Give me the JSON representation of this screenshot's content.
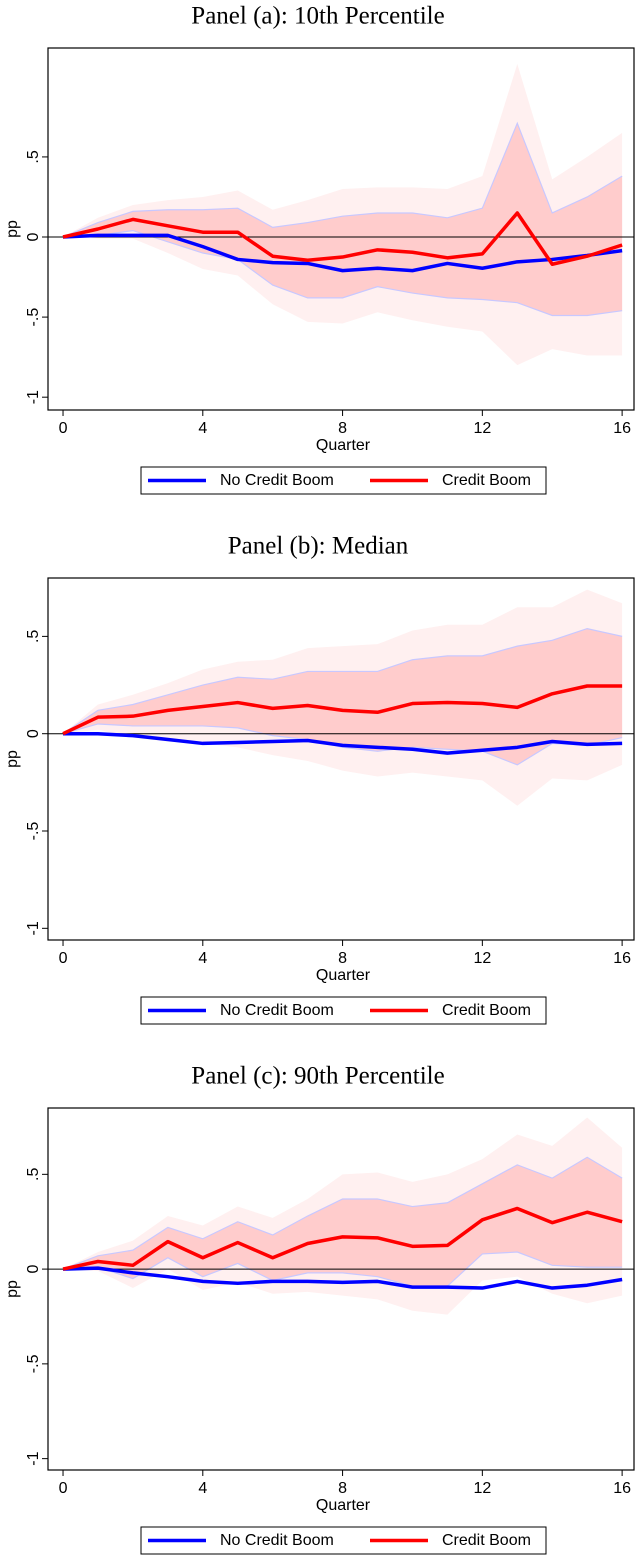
{
  "chart_data": [
    {
      "type": "line",
      "title": "Panel (a): 10th Percentile",
      "xlabel": "Quarter",
      "ylabel": "pp",
      "legend": "below",
      "reference_line": 0,
      "x": [
        0,
        1,
        2,
        3,
        4,
        5,
        6,
        7,
        8,
        9,
        10,
        11,
        12,
        13,
        14,
        15,
        16
      ],
      "xlim": [
        -0.43,
        16.34
      ],
      "xticks": [
        0,
        4,
        8,
        12,
        16
      ],
      "ylim": [
        -1.08,
        1.18
      ],
      "yticks": [
        {
          "value": -1,
          "label": "-1"
        },
        {
          "value": -0.5,
          "label": "-.5"
        },
        0,
        {
          "value": 0.5,
          "label": ".5"
        }
      ],
      "series": [
        {
          "name": "No Credit Boom",
          "color": "#0000ff",
          "values": [
            0,
            0.01,
            0.01,
            0.01,
            -0.06,
            -0.14,
            -0.16,
            -0.165,
            -0.21,
            -0.195,
            -0.21,
            -0.165,
            -0.195,
            -0.155,
            -0.14,
            -0.115,
            -0.085
          ]
        },
        {
          "name": "Credit Boom",
          "color": "#ff0000",
          "values": [
            0,
            0.05,
            0.11,
            0.07,
            0.03,
            0.03,
            -0.12,
            -0.145,
            -0.125,
            -0.08,
            -0.095,
            -0.13,
            -0.105,
            0.15,
            -0.17,
            -0.12,
            -0.05
          ]
        }
      ],
      "bands": [
        {
          "color": "#fff0f0",
          "lower": [
            0,
            -0.01,
            -0.01,
            -0.1,
            -0.2,
            -0.24,
            -0.42,
            -0.53,
            -0.54,
            -0.47,
            -0.52,
            -0.56,
            -0.59,
            -0.8,
            -0.7,
            -0.74,
            -0.74
          ],
          "upper": [
            0,
            0.12,
            0.2,
            0.23,
            0.25,
            0.29,
            0.17,
            0.23,
            0.3,
            0.31,
            0.31,
            0.3,
            0.38,
            1.08,
            0.36,
            0.5,
            0.65
          ]
        },
        {
          "color": "#ffcccc",
          "edge_color": "#c8c8ff",
          "lower": [
            0,
            0.01,
            0.04,
            -0.03,
            -0.1,
            -0.14,
            -0.3,
            -0.38,
            -0.38,
            -0.31,
            -0.35,
            -0.38,
            -0.39,
            -0.41,
            -0.49,
            -0.49,
            -0.46
          ],
          "upper": [
            0,
            0.09,
            0.16,
            0.17,
            0.17,
            0.18,
            0.06,
            0.09,
            0.13,
            0.15,
            0.15,
            0.12,
            0.18,
            0.71,
            0.15,
            0.25,
            0.38
          ]
        }
      ]
    },
    {
      "type": "line",
      "title": "Panel (b): Median",
      "xlabel": "Quarter",
      "ylabel": "pp",
      "legend": "below",
      "reference_line": 0,
      "x": [
        0,
        1,
        2,
        3,
        4,
        5,
        6,
        7,
        8,
        9,
        10,
        11,
        12,
        13,
        14,
        15,
        16
      ],
      "xlim": [
        -0.43,
        16.34
      ],
      "xticks": [
        0,
        4,
        8,
        12,
        16
      ],
      "ylim": [
        -1.06,
        0.8
      ],
      "yticks": [
        {
          "value": -1,
          "label": "-1"
        },
        {
          "value": -0.5,
          "label": "-.5"
        },
        0,
        {
          "value": 0.5,
          "label": ".5"
        }
      ],
      "series": [
        {
          "name": "No Credit Boom",
          "color": "#0000ff",
          "values": [
            0,
            0,
            -0.01,
            -0.03,
            -0.05,
            -0.045,
            -0.04,
            -0.035,
            -0.06,
            -0.07,
            -0.08,
            -0.1,
            -0.085,
            -0.07,
            -0.04,
            -0.055,
            -0.05
          ]
        },
        {
          "name": "Credit Boom",
          "color": "#ff0000",
          "values": [
            0,
            0.085,
            0.09,
            0.12,
            0.14,
            0.16,
            0.13,
            0.145,
            0.12,
            0.11,
            0.155,
            0.16,
            0.155,
            0.135,
            0.205,
            0.245,
            0.245
          ]
        }
      ],
      "bands": [
        {
          "color": "#fff0f0",
          "lower": [
            0,
            0.02,
            -0.02,
            -0.04,
            -0.05,
            -0.07,
            -0.11,
            -0.14,
            -0.19,
            -0.22,
            -0.2,
            -0.22,
            -0.24,
            -0.37,
            -0.23,
            -0.24,
            -0.16
          ],
          "upper": [
            0,
            0.15,
            0.2,
            0.26,
            0.33,
            0.37,
            0.38,
            0.44,
            0.45,
            0.46,
            0.53,
            0.56,
            0.56,
            0.65,
            0.65,
            0.74,
            0.67
          ]
        },
        {
          "color": "#ffcccc",
          "edge_color": "#c8c8ff",
          "lower": [
            0,
            0.05,
            0.04,
            0.04,
            0.04,
            0.03,
            -0.01,
            -0.03,
            -0.07,
            -0.09,
            -0.07,
            -0.08,
            -0.09,
            -0.16,
            -0.05,
            -0.06,
            -0.02
          ],
          "upper": [
            0,
            0.12,
            0.15,
            0.2,
            0.25,
            0.29,
            0.28,
            0.32,
            0.32,
            0.32,
            0.38,
            0.4,
            0.4,
            0.45,
            0.48,
            0.54,
            0.5
          ]
        }
      ]
    },
    {
      "type": "line",
      "title": "Panel (c): 90th Percentile",
      "xlabel": "Quarter",
      "ylabel": "pp",
      "legend": "below",
      "reference_line": 0,
      "x": [
        0,
        1,
        2,
        3,
        4,
        5,
        6,
        7,
        8,
        9,
        10,
        11,
        12,
        13,
        14,
        15,
        16
      ],
      "xlim": [
        -0.43,
        16.34
      ],
      "xticks": [
        0,
        4,
        8,
        12,
        16
      ],
      "ylim": [
        -1.06,
        0.85
      ],
      "yticks": [
        {
          "value": -1,
          "label": "-1"
        },
        {
          "value": -0.5,
          "label": "-.5"
        },
        0,
        {
          "value": 0.5,
          "label": ".5"
        }
      ],
      "series": [
        {
          "name": "No Credit Boom",
          "color": "#0000ff",
          "values": [
            0,
            0.005,
            -0.02,
            -0.04,
            -0.065,
            -0.075,
            -0.065,
            -0.065,
            -0.07,
            -0.065,
            -0.095,
            -0.095,
            -0.1,
            -0.065,
            -0.1,
            -0.085,
            -0.055
          ]
        },
        {
          "name": "Credit Boom",
          "color": "#ff0000",
          "values": [
            0,
            0.04,
            0.02,
            0.145,
            0.06,
            0.14,
            0.06,
            0.135,
            0.17,
            0.165,
            0.12,
            0.125,
            0.26,
            0.32,
            0.245,
            0.3,
            0.25
          ]
        }
      ],
      "bands": [
        {
          "color": "#fff0f0",
          "lower": [
            0,
            -0.01,
            -0.1,
            0,
            -0.11,
            -0.07,
            -0.13,
            -0.12,
            -0.14,
            -0.16,
            -0.22,
            -0.24,
            -0.06,
            -0.04,
            -0.13,
            -0.18,
            -0.14
          ],
          "upper": [
            0,
            0.09,
            0.15,
            0.28,
            0.23,
            0.33,
            0.27,
            0.37,
            0.5,
            0.51,
            0.46,
            0.5,
            0.58,
            0.71,
            0.65,
            0.8,
            0.64
          ]
        },
        {
          "color": "#ffcccc",
          "edge_color": "#c8c8ff",
          "lower": [
            0,
            0.01,
            -0.05,
            0.06,
            -0.04,
            0.03,
            -0.06,
            -0.02,
            -0.02,
            -0.04,
            -0.09,
            -0.09,
            0.08,
            0.09,
            0.02,
            0.01,
            0.01
          ],
          "upper": [
            0,
            0.07,
            0.1,
            0.22,
            0.16,
            0.25,
            0.18,
            0.28,
            0.37,
            0.37,
            0.33,
            0.35,
            0.45,
            0.55,
            0.48,
            0.59,
            0.48
          ]
        }
      ]
    }
  ]
}
